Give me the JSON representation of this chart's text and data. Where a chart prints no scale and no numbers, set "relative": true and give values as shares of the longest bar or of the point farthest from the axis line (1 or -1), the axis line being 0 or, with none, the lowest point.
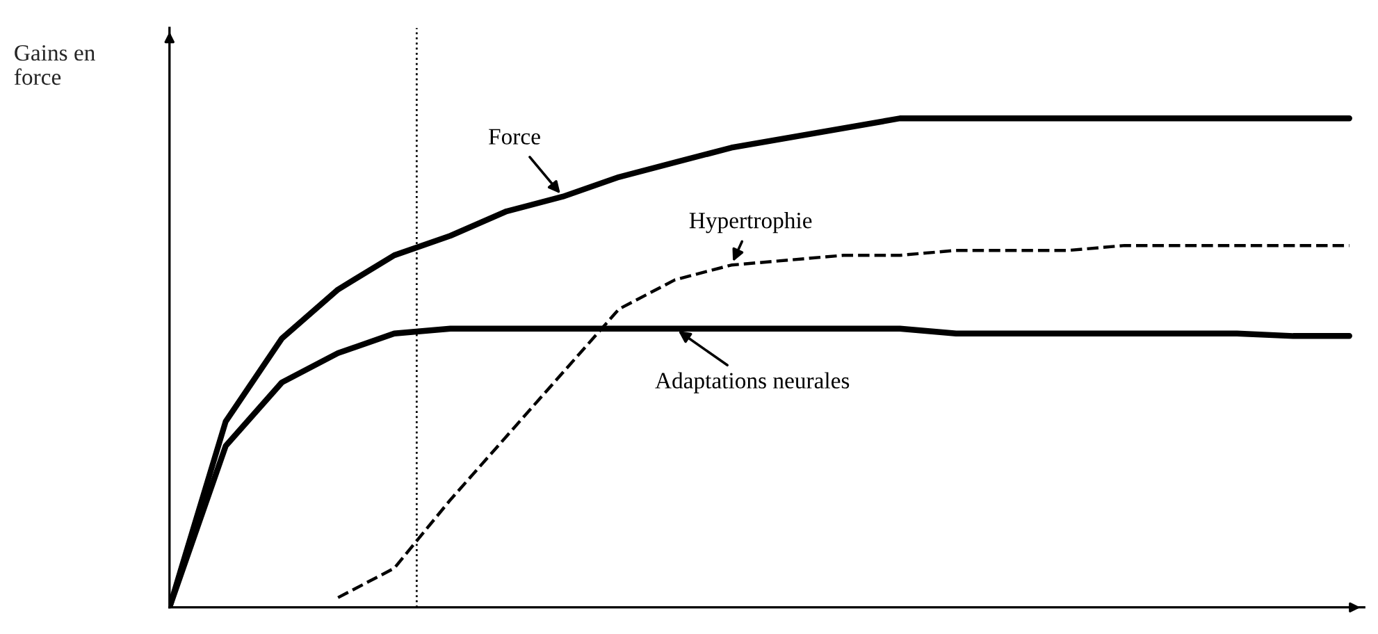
{
  "chart_data": {
    "type": "line",
    "relative": true,
    "ylabel": "Gains en force",
    "categories": [
      null,
      null,
      null,
      null,
      null,
      null,
      null,
      null,
      null,
      null,
      null,
      null,
      null,
      null,
      null,
      null,
      null,
      null,
      null,
      null,
      null,
      null
    ],
    "series": [
      {
        "name": "Force",
        "color": "#000000",
        "line_style": "solid",
        "values": [
          0,
          0.38,
          0.55,
          0.65,
          0.72,
          0.76,
          0.81,
          0.84,
          0.88,
          0.91,
          0.94,
          0.96,
          0.98,
          1,
          1,
          1,
          1,
          1,
          1,
          1,
          1,
          1
        ]
      },
      {
        "name": "Hypertrophie",
        "color": "#000000",
        "line_style": "dashed",
        "values": [
          null,
          null,
          null,
          0.02,
          0.08,
          0.22,
          0.35,
          0.48,
          0.61,
          0.67,
          0.7,
          0.71,
          0.72,
          0.72,
          0.73,
          0.73,
          0.73,
          0.74,
          0.74,
          0.74,
          0.74,
          0.74
        ]
      },
      {
        "name": "Adaptations neurales",
        "color": "#000000",
        "line_style": "solid",
        "values": [
          0,
          0.33,
          0.46,
          0.52,
          0.56,
          0.57,
          0.57,
          0.57,
          0.57,
          0.57,
          0.57,
          0.57,
          0.57,
          0.57,
          0.56,
          0.56,
          0.56,
          0.56,
          0.56,
          0.56,
          0.555,
          0.555
        ]
      }
    ]
  }
}
